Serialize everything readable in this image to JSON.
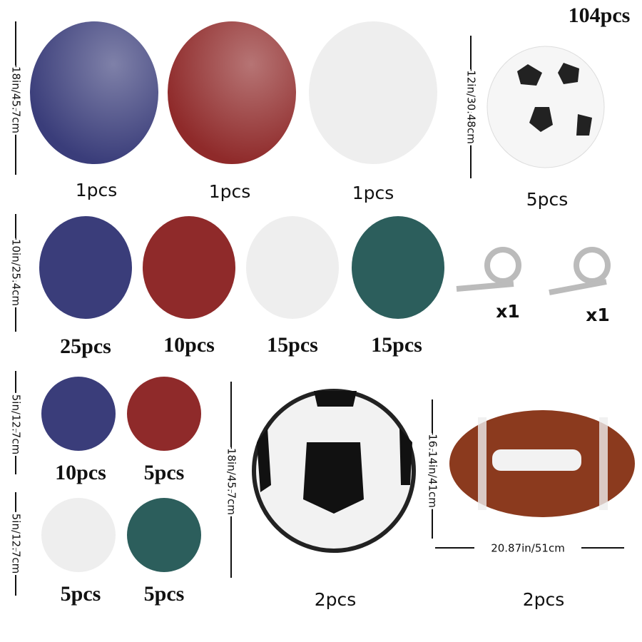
{
  "total": "104pcs",
  "size_labels": [
    "18in/45.7cm",
    "12in/30.48cm",
    "10in/25.4cm",
    "5in/12.7cm",
    "5in/12.7cm",
    "18in/45.7cm",
    "16.14in/41cm",
    "20.87in/51cm"
  ],
  "quantities": [
    "1pcs",
    "1pcs",
    "1pcs",
    "5pcs",
    "25pcs",
    "10pcs",
    "15pcs",
    "15pcs",
    "x1",
    "x1",
    "10pcs",
    "5pcs",
    "5pcs",
    "5pcs",
    "2pcs",
    "2pcs"
  ]
}
